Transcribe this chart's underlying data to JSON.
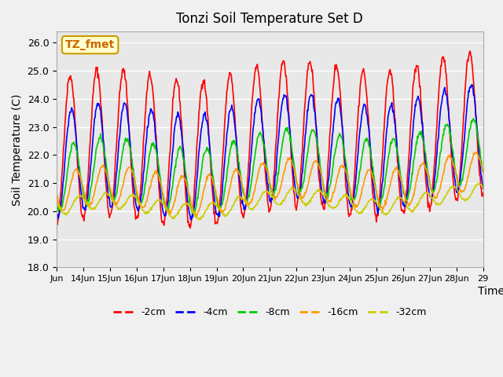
{
  "title": "Tonzi Soil Temperature Set D",
  "xlabel": "Time",
  "ylabel": "Soil Temperature (C)",
  "ylim": [
    18.0,
    26.4
  ],
  "yticks": [
    18.0,
    19.0,
    20.0,
    21.0,
    22.0,
    23.0,
    24.0,
    25.0,
    26.0
  ],
  "xlabels": [
    "Jun",
    "14Jun",
    "15Jun",
    "16Jun",
    "17Jun",
    "18Jun",
    "19Jun",
    "20Jun",
    "21Jun",
    "22Jun",
    "23Jun",
    "24Jun",
    "25Jun",
    "26Jun",
    "27Jun",
    "28Jun",
    "29"
  ],
  "annotation_text": "TZ_fmet",
  "series_colors": [
    "#ff0000",
    "#0000ff",
    "#00cc00",
    "#ff9900",
    "#cccc00"
  ],
  "series_labels": [
    "-2cm",
    "-4cm",
    "-8cm",
    "-16cm",
    "-32cm"
  ],
  "background_color": "#e8e8e8",
  "grid_color": "#ffffff",
  "n_days": 16,
  "points_per_day": 48
}
